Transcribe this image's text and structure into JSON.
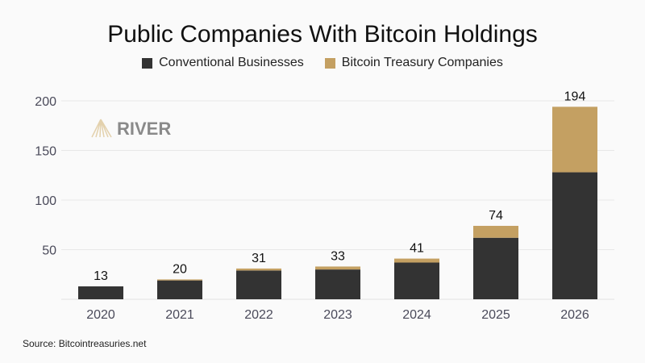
{
  "chart_data": {
    "type": "bar",
    "stacked": true,
    "title": "Public Companies With Bitcoin Holdings",
    "categories": [
      "2020",
      "2021",
      "2022",
      "2023",
      "2024",
      "2025",
      "2026"
    ],
    "series": [
      {
        "name": "Conventional Businesses",
        "color": "#333333",
        "values": [
          13,
          19,
          29,
          30,
          37,
          62,
          128
        ]
      },
      {
        "name": "Bitcoin Treasury Companies",
        "color": "#c4a062",
        "values": [
          0,
          1,
          2,
          3,
          4,
          12,
          66
        ]
      }
    ],
    "totals": [
      "13",
      "20",
      "31",
      "33",
      "41",
      "74",
      "194"
    ],
    "yticks": [
      "50",
      "100",
      "150",
      "200"
    ],
    "ylim": [
      0,
      200
    ],
    "grid": true,
    "legend": "top",
    "xlabel": "",
    "ylabel": ""
  },
  "watermark": "RIVER",
  "source": "Source: Bitcointreasuries.net"
}
